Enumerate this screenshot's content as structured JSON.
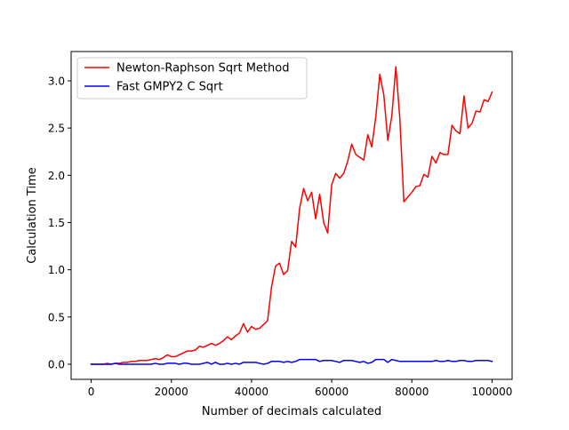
{
  "chart_data": {
    "type": "line",
    "title": "",
    "xlabel": "Number of decimals calculated",
    "ylabel": "Calculation Time",
    "xlim": [
      -5000,
      105000
    ],
    "ylim": [
      -0.16,
      3.31
    ],
    "grid": false,
    "legend_position": "top-left",
    "xticks": [
      0,
      20000,
      40000,
      60000,
      80000,
      100000
    ],
    "xtick_labels": [
      "0",
      "20000",
      "40000",
      "60000",
      "80000",
      "100000"
    ],
    "yticks": [
      0.0,
      0.5,
      1.0,
      1.5,
      2.0,
      2.5,
      3.0
    ],
    "ytick_labels": [
      "0.0",
      "0.5",
      "1.0",
      "1.5",
      "2.0",
      "2.5",
      "3.0"
    ],
    "series": [
      {
        "name": "Newton-Raphson Sqrt Method",
        "color": "#ff0000",
        "x": [
          0,
          1000,
          2000,
          3000,
          4000,
          5000,
          6000,
          7000,
          8000,
          9000,
          10000,
          11000,
          12000,
          13000,
          14000,
          15000,
          16000,
          17000,
          18000,
          19000,
          20000,
          21000,
          22000,
          23000,
          24000,
          25000,
          26000,
          27000,
          28000,
          29000,
          30000,
          31000,
          32000,
          33000,
          34000,
          35000,
          36000,
          37000,
          38000,
          39000,
          40000,
          41000,
          42000,
          43000,
          44000,
          45000,
          46000,
          47000,
          48000,
          49000,
          50000,
          51000,
          52000,
          53000,
          54000,
          55000,
          56000,
          57000,
          58000,
          59000,
          60000,
          61000,
          62000,
          63000,
          64000,
          65000,
          66000,
          67000,
          68000,
          69000,
          70000,
          71000,
          72000,
          73000,
          74000,
          75000,
          76000,
          77000,
          78000,
          79000,
          80000,
          81000,
          82000,
          83000,
          84000,
          85000,
          86000,
          87000,
          88000,
          89000,
          90000,
          91000,
          92000,
          93000,
          94000,
          95000,
          96000,
          97000,
          98000,
          99000,
          100000
        ],
        "y": [
          0.0,
          0.0,
          0.0,
          0.0,
          0.01,
          0.0,
          0.01,
          0.01,
          0.02,
          0.02,
          0.03,
          0.03,
          0.04,
          0.04,
          0.04,
          0.05,
          0.06,
          0.05,
          0.07,
          0.1,
          0.08,
          0.08,
          0.1,
          0.12,
          0.14,
          0.14,
          0.15,
          0.19,
          0.18,
          0.2,
          0.22,
          0.2,
          0.22,
          0.25,
          0.29,
          0.26,
          0.3,
          0.33,
          0.43,
          0.34,
          0.4,
          0.37,
          0.38,
          0.42,
          0.46,
          0.82,
          1.04,
          1.07,
          0.95,
          0.99,
          1.3,
          1.24,
          1.65,
          1.86,
          1.73,
          1.82,
          1.54,
          1.8,
          1.5,
          1.39,
          1.9,
          2.02,
          1.97,
          2.02,
          2.15,
          2.33,
          2.22,
          2.19,
          2.16,
          2.43,
          2.3,
          2.62,
          3.07,
          2.85,
          2.37,
          2.63,
          3.15,
          2.6,
          1.72,
          1.77,
          1.82,
          1.88,
          1.89,
          2.01,
          1.98,
          2.2,
          2.13,
          2.24,
          2.22,
          2.22,
          2.53,
          2.47,
          2.44,
          2.84,
          2.5,
          2.55,
          2.68,
          2.67,
          2.8,
          2.78,
          2.88
        ]
      },
      {
        "name": "Fast GMPY2 C Sqrt",
        "color": "#0000ff",
        "x": [
          0,
          1000,
          2000,
          3000,
          4000,
          5000,
          6000,
          7000,
          8000,
          9000,
          10000,
          11000,
          12000,
          13000,
          14000,
          15000,
          16000,
          17000,
          18000,
          19000,
          20000,
          21000,
          22000,
          23000,
          24000,
          25000,
          26000,
          27000,
          28000,
          29000,
          30000,
          31000,
          32000,
          33000,
          34000,
          35000,
          36000,
          37000,
          38000,
          39000,
          40000,
          41000,
          42000,
          43000,
          44000,
          45000,
          46000,
          47000,
          48000,
          49000,
          50000,
          51000,
          52000,
          53000,
          54000,
          55000,
          56000,
          57000,
          58000,
          59000,
          60000,
          61000,
          62000,
          63000,
          64000,
          65000,
          66000,
          67000,
          68000,
          69000,
          70000,
          71000,
          72000,
          73000,
          74000,
          75000,
          76000,
          77000,
          78000,
          79000,
          80000,
          81000,
          82000,
          83000,
          84000,
          85000,
          86000,
          87000,
          88000,
          89000,
          90000,
          91000,
          92000,
          93000,
          94000,
          95000,
          96000,
          97000,
          98000,
          99000,
          100000
        ],
        "y": [
          0.0,
          0.0,
          0.0,
          0.0,
          0.0,
          0.0,
          0.01,
          0.0,
          0.0,
          0.0,
          0.0,
          0.0,
          0.0,
          0.0,
          0.0,
          0.0,
          0.01,
          0.0,
          0.0,
          0.01,
          0.01,
          0.01,
          0.0,
          0.01,
          0.01,
          0.0,
          0.0,
          0.0,
          0.01,
          0.02,
          0.0,
          0.02,
          0.0,
          0.0,
          0.01,
          0.0,
          0.01,
          0.0,
          0.02,
          0.02,
          0.02,
          0.02,
          0.01,
          0.0,
          0.01,
          0.03,
          0.03,
          0.03,
          0.02,
          0.03,
          0.02,
          0.03,
          0.05,
          0.05,
          0.05,
          0.05,
          0.05,
          0.03,
          0.04,
          0.04,
          0.04,
          0.03,
          0.02,
          0.04,
          0.04,
          0.04,
          0.03,
          0.02,
          0.03,
          0.01,
          0.02,
          0.05,
          0.05,
          0.05,
          0.02,
          0.05,
          0.04,
          0.03,
          0.03,
          0.03,
          0.03,
          0.03,
          0.03,
          0.03,
          0.03,
          0.03,
          0.04,
          0.03,
          0.03,
          0.04,
          0.03,
          0.03,
          0.04,
          0.04,
          0.03,
          0.03,
          0.04,
          0.04,
          0.04,
          0.04,
          0.03
        ]
      }
    ]
  }
}
